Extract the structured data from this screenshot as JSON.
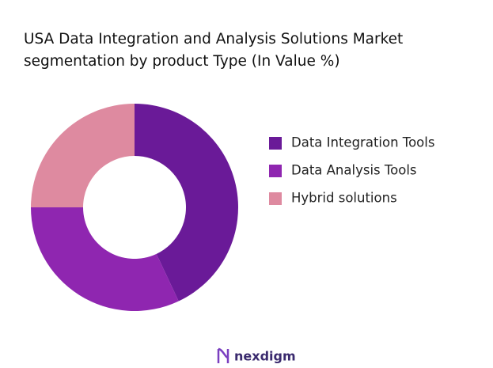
{
  "chart_data": {
    "type": "donut",
    "title": "USA Data Integration and Analysis Solutions Market segmentation by product Type (In Value %)",
    "categories": [
      "Data Integration Tools",
      "Data Analysis Tools",
      "Hybrid solutions"
    ],
    "values": [
      43,
      32,
      25
    ],
    "colors": [
      "#6a1a98",
      "#8f26b0",
      "#de8aa0"
    ],
    "legend": "right",
    "logo": "nexdigm"
  }
}
